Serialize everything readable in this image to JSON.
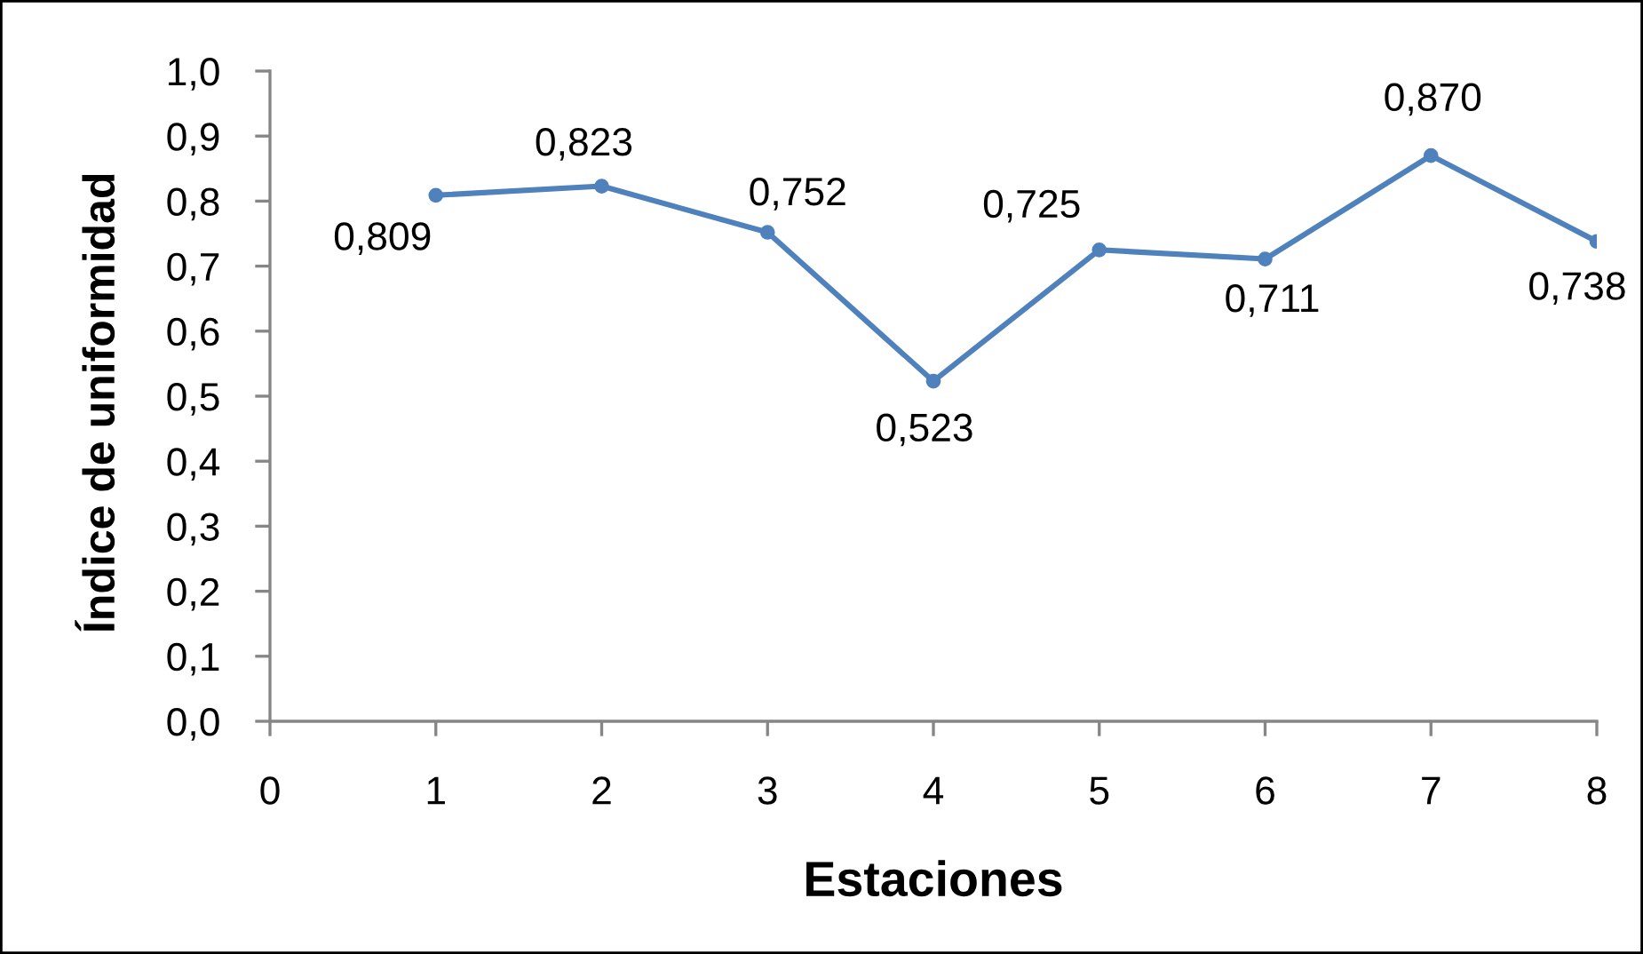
{
  "chart_data": {
    "type": "line",
    "xlabel": "Estaciones",
    "ylabel": "Índice de uniformidad",
    "x": [
      1,
      2,
      3,
      4,
      5,
      6,
      7,
      8
    ],
    "series": [
      {
        "color": "#4f81bd",
        "values": [
          0.809,
          0.823,
          0.752,
          0.523,
          0.725,
          0.711,
          0.87,
          0.738
        ],
        "value_labels": [
          "0,809",
          "0,823",
          "0,752",
          "0,523",
          "0,725",
          "0,711",
          "0,870",
          "0,738"
        ]
      }
    ],
    "xlim": [
      0,
      8
    ],
    "xticks": [
      0,
      1,
      2,
      3,
      4,
      5,
      6,
      7,
      8
    ],
    "ylim": [
      0,
      1
    ],
    "yticks": [
      {
        "value": 0,
        "label": "0,0"
      },
      {
        "value": 0.1,
        "label": "0,1"
      },
      {
        "value": 0.2,
        "label": "0,2"
      },
      {
        "value": 0.3,
        "label": "0,3"
      },
      {
        "value": 0.4,
        "label": "0,4"
      },
      {
        "value": 0.5,
        "label": "0,5"
      },
      {
        "value": 0.6,
        "label": "0,6"
      },
      {
        "value": 0.7,
        "label": "0,7"
      },
      {
        "value": 0.8,
        "label": "0,8"
      },
      {
        "value": 0.9,
        "label": "0,9"
      },
      {
        "value": 1,
        "label": "1,0"
      }
    ],
    "marker": "circle",
    "line_style": "solid",
    "grid": false
  }
}
